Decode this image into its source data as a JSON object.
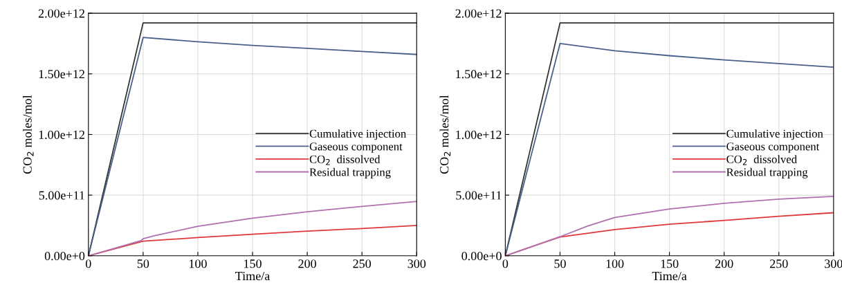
{
  "chart_data": [
    {
      "type": "line",
      "xlabel": "Time/a",
      "ylabel": "CO$_{2}$ moles/mol",
      "xlim": [
        0,
        300
      ],
      "xticks": [
        0,
        50,
        100,
        150,
        200,
        250,
        300
      ],
      "ylim": [
        0,
        2000000000000
      ],
      "yticks": [
        {
          "value": 0,
          "label": "0.00e+0"
        },
        {
          "value": 500000000000,
          "label": "5.00e+11"
        },
        {
          "value": 1000000000000,
          "label": "1.00e+12"
        },
        {
          "value": 1500000000000,
          "label": "1.50e+12"
        },
        {
          "value": 2000000000000,
          "label": "2.00e+12"
        }
      ],
      "grid": true,
      "legend": "center right",
      "marker": "none",
      "line_style": "solid",
      "series": [
        {
          "name": "Cumulative injection",
          "color": "#333333",
          "x": [
            0,
            50,
            300
          ],
          "values": [
            0,
            1920000000000,
            1920000000000
          ]
        },
        {
          "name": "Gaseous component",
          "color": "#4a5f8a",
          "x": [
            0,
            50,
            100,
            150,
            200,
            250,
            300
          ],
          "values": [
            0,
            1800000000000,
            1765000000000,
            1735000000000,
            1710000000000,
            1685000000000,
            1660000000000
          ]
        },
        {
          "name": "CO$_{2}$  dissolved",
          "color": "#e0383a",
          "x": [
            0,
            50,
            100,
            150,
            200,
            250,
            300
          ],
          "values": [
            0,
            120000000000,
            150000000000,
            178000000000,
            203000000000,
            225000000000,
            250000000000
          ]
        },
        {
          "name": "Residual trapping",
          "color": "#b070b0",
          "x": [
            0,
            48,
            50,
            60,
            100,
            150,
            200,
            250,
            300
          ],
          "values": [
            0,
            125000000000,
            140000000000,
            165000000000,
            243000000000,
            310000000000,
            363000000000,
            407000000000,
            448000000000
          ]
        }
      ]
    },
    {
      "type": "line",
      "xlabel": "Time/a",
      "ylabel": "CO$_{2}$ moles/mol",
      "xlim": [
        0,
        300
      ],
      "xticks": [
        0,
        50,
        100,
        150,
        200,
        250,
        300
      ],
      "ylim": [
        0,
        2000000000000
      ],
      "yticks": [
        {
          "value": 0,
          "label": "0.00e+0"
        },
        {
          "value": 500000000000,
          "label": "5.00e+11"
        },
        {
          "value": 1000000000000,
          "label": "1.00e+12"
        },
        {
          "value": 1500000000000,
          "label": "1.50e+12"
        },
        {
          "value": 2000000000000,
          "label": "2.00e+12"
        }
      ],
      "grid": true,
      "legend": "center right",
      "marker": "none",
      "line_style": "solid",
      "series": [
        {
          "name": "Cumulative injection",
          "color": "#333333",
          "x": [
            0,
            50,
            300
          ],
          "values": [
            0,
            1920000000000,
            1920000000000
          ]
        },
        {
          "name": "Gaseous component",
          "color": "#4a5f8a",
          "x": [
            0,
            50,
            100,
            150,
            200,
            250,
            300
          ],
          "values": [
            0,
            1750000000000,
            1690000000000,
            1650000000000,
            1615000000000,
            1585000000000,
            1555000000000
          ]
        },
        {
          "name": "CO$_{2}$  dissolved",
          "color": "#e0383a",
          "x": [
            0,
            50,
            100,
            150,
            200,
            250,
            300
          ],
          "values": [
            0,
            155000000000,
            216000000000,
            260000000000,
            292000000000,
            326000000000,
            355000000000
          ]
        },
        {
          "name": "Residual trapping",
          "color": "#b070b0",
          "x": [
            0,
            50,
            75,
            100,
            150,
            200,
            250,
            300
          ],
          "values": [
            0,
            157000000000,
            245000000000,
            316000000000,
            386000000000,
            433000000000,
            467000000000,
            490000000000
          ]
        }
      ]
    }
  ]
}
